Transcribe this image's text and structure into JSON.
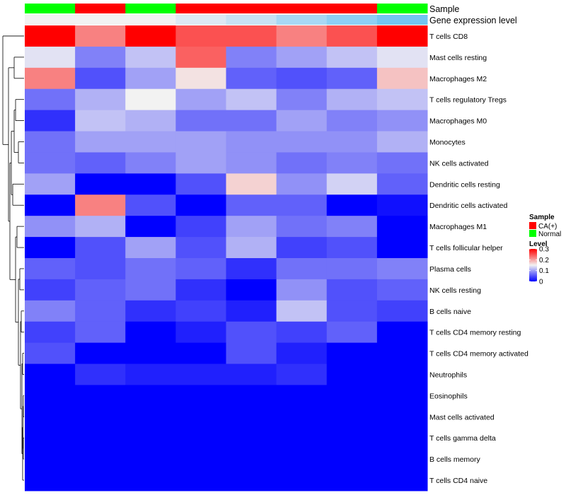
{
  "chart_data": {
    "type": "heatmap",
    "title": "",
    "column_annotations": [
      {
        "name": "Sample",
        "values": [
          "Normal",
          "CA(+)",
          "Normal",
          "CA(+)",
          "CA(+)",
          "CA(+)",
          "CA(+)",
          "Normal"
        ]
      },
      {
        "name": "Gene expression level",
        "values": [
          0.0,
          0.0,
          0.0,
          1.0,
          2.0,
          3.0,
          4.0,
          5.0
        ]
      }
    ],
    "rows": [
      "T cells CD8",
      "Mast cells resting",
      "Macrophages M2",
      "T cells regulatory  Tregs",
      "Macrophages M0",
      "Monocytes",
      "NK cells activated",
      "Dendritic cells resting",
      "Dendritic cells activated",
      "Macrophages M1",
      "T cells follicular helper",
      "Plasma cells",
      "NK cells resting",
      "B cells naive",
      "T cells CD4 memory resting",
      "T cells CD4 memory activated",
      "Neutrophils",
      "Eosinophils",
      "Mast cells activated",
      "T cells gamma delta",
      "B cells memory",
      "T cells CD4 naive"
    ],
    "values": [
      [
        0.3,
        0.22,
        0.3,
        0.25,
        0.25,
        0.22,
        0.25,
        0.3
      ],
      [
        0.14,
        0.08,
        0.12,
        0.24,
        0.08,
        0.1,
        0.12,
        0.14
      ],
      [
        0.22,
        0.05,
        0.1,
        0.16,
        0.06,
        0.05,
        0.06,
        0.18
      ],
      [
        0.07,
        0.11,
        0.15,
        0.1,
        0.12,
        0.08,
        0.11,
        0.12
      ],
      [
        0.03,
        0.12,
        0.11,
        0.07,
        0.07,
        0.1,
        0.08,
        0.09
      ],
      [
        0.07,
        0.1,
        0.1,
        0.1,
        0.09,
        0.09,
        0.09,
        0.11
      ],
      [
        0.07,
        0.06,
        0.08,
        0.1,
        0.09,
        0.07,
        0.08,
        0.07
      ],
      [
        0.1,
        0.0,
        0.0,
        0.05,
        0.17,
        0.09,
        0.13,
        0.06
      ],
      [
        0.0,
        0.22,
        0.05,
        0.0,
        0.06,
        0.06,
        0.0,
        0.01
      ],
      [
        0.09,
        0.11,
        0.0,
        0.04,
        0.1,
        0.07,
        0.08,
        0.0
      ],
      [
        0.0,
        0.05,
        0.1,
        0.05,
        0.11,
        0.04,
        0.05,
        0.0
      ],
      [
        0.06,
        0.05,
        0.07,
        0.06,
        0.03,
        0.07,
        0.07,
        0.08
      ],
      [
        0.04,
        0.06,
        0.07,
        0.03,
        0.0,
        0.09,
        0.05,
        0.06
      ],
      [
        0.08,
        0.06,
        0.03,
        0.04,
        0.02,
        0.12,
        0.05,
        0.04
      ],
      [
        0.04,
        0.06,
        0.0,
        0.02,
        0.05,
        0.04,
        0.06,
        0.0
      ],
      [
        0.05,
        0.0,
        0.0,
        0.0,
        0.05,
        0.02,
        0.0,
        0.0
      ],
      [
        0.0,
        0.03,
        0.02,
        0.02,
        0.02,
        0.03,
        0.0,
        0.0
      ],
      [
        0.0,
        0.0,
        0.0,
        0.0,
        0.0,
        0.0,
        0.0,
        0.0
      ],
      [
        0.0,
        0.0,
        0.0,
        0.0,
        0.0,
        0.0,
        0.0,
        0.0
      ],
      [
        0.0,
        0.0,
        0.0,
        0.0,
        0.0,
        0.0,
        0.0,
        0.0
      ],
      [
        0.0,
        0.0,
        0.0,
        0.0,
        0.0,
        0.0,
        0.0,
        0.0
      ],
      [
        0.0,
        0.0,
        0.0,
        0.0,
        0.0,
        0.0,
        0.0,
        0.0
      ]
    ],
    "color_scale": {
      "min": 0,
      "mid": 0.15,
      "max": 0.3,
      "low": "#0000FF",
      "mid_color": "#F2F2F2",
      "high": "#FF0000"
    },
    "legend": {
      "sample_title": "Sample",
      "sample_entries": [
        {
          "label": "CA(+)",
          "color": "#FF0000"
        },
        {
          "label": "Normal",
          "color": "#00FF00"
        }
      ],
      "level_title": "Level",
      "level_ticks": [
        {
          "value": 0.3,
          "label": "0.3"
        },
        {
          "value": 0.2,
          "label": "0.2"
        },
        {
          "value": 0.1,
          "label": "0.1"
        },
        {
          "value": 0.0,
          "label": "0"
        }
      ],
      "placement": "right"
    },
    "expression_colors": [
      "#F2F2F2",
      "#DDE9F4",
      "#C8E2F4",
      "#A8D8F5",
      "#8ECFF5",
      "#73C5F2"
    ],
    "row_dendrogram": true
  }
}
